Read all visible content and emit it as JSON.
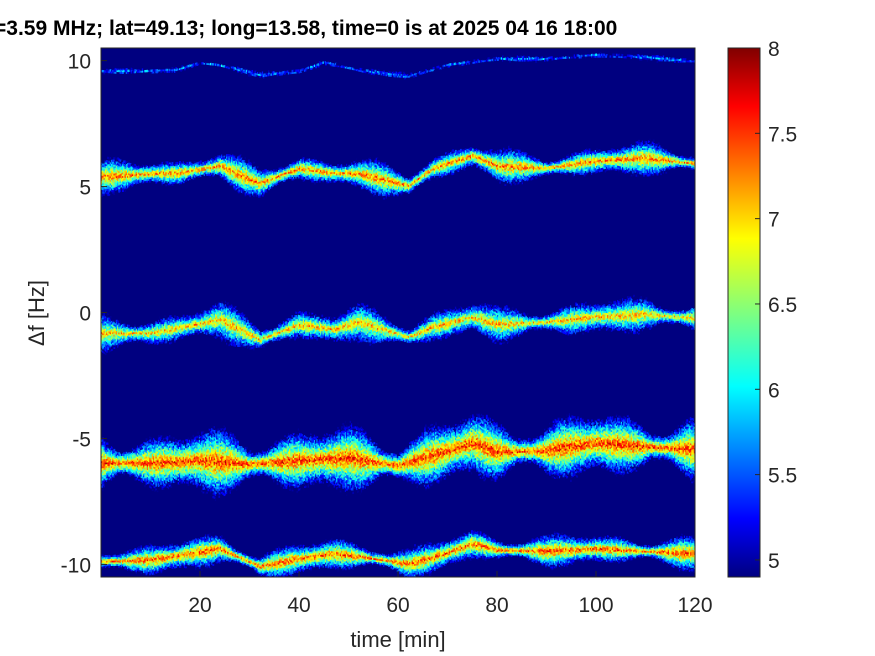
{
  "title": "=3.59 MHz;  lat=49.13; long=13.58, time=0 is at 2025 04 16 18:00",
  "chart_data": {
    "type": "heatmap",
    "title": "=3.59 MHz;  lat=49.13; long=13.58, time=0 is at 2025 04 16 18:00",
    "xlabel": "time [min]",
    "ylabel": "Δf [Hz]",
    "xlim": [
      0,
      120
    ],
    "ylim": [
      -10.5,
      10.5
    ],
    "xticks": [
      20,
      40,
      60,
      80,
      100,
      120
    ],
    "yticks": [
      10,
      5,
      0,
      -5,
      -10
    ],
    "colorbar": {
      "colormap": "jet",
      "clim": [
        4.9,
        8
      ],
      "ticks": [
        8,
        7.5,
        7,
        6.5,
        6,
        5.5,
        5
      ]
    },
    "background_color": "#000080",
    "bands": [
      {
        "center_offset": 10,
        "spread": 0.08,
        "peak": 6.2,
        "trace": [
          [
            0,
            9.55
          ],
          [
            10,
            9.55
          ],
          [
            15,
            9.6
          ],
          [
            20,
            9.9
          ],
          [
            25,
            9.75
          ],
          [
            32,
            9.4
          ],
          [
            40,
            9.55
          ],
          [
            45,
            9.9
          ],
          [
            52,
            9.6
          ],
          [
            62,
            9.35
          ],
          [
            70,
            9.8
          ],
          [
            80,
            10.05
          ],
          [
            90,
            10.05
          ],
          [
            100,
            10.2
          ],
          [
            110,
            10.1
          ],
          [
            120,
            9.95
          ]
        ]
      },
      {
        "center_offset": 5,
        "spread": 0.45,
        "peak": 7.7,
        "trace": [
          [
            0,
            5.35
          ],
          [
            10,
            5.5
          ],
          [
            15,
            5.5
          ],
          [
            24,
            5.8
          ],
          [
            32,
            5.1
          ],
          [
            40,
            5.7
          ],
          [
            47,
            5.5
          ],
          [
            52,
            5.5
          ],
          [
            62,
            5.0
          ],
          [
            67,
            5.7
          ],
          [
            75,
            6.2
          ],
          [
            80,
            5.8
          ],
          [
            90,
            5.7
          ],
          [
            100,
            6.0
          ],
          [
            110,
            6.1
          ],
          [
            120,
            5.9
          ]
        ]
      },
      {
        "center_offset": 0,
        "spread": 0.5,
        "peak": 7.5,
        "trace": [
          [
            0,
            -0.85
          ],
          [
            10,
            -0.85
          ],
          [
            24,
            -0.3
          ],
          [
            32,
            -1.1
          ],
          [
            40,
            -0.5
          ],
          [
            47,
            -0.7
          ],
          [
            52,
            -0.4
          ],
          [
            62,
            -1.0
          ],
          [
            67,
            -0.6
          ],
          [
            75,
            -0.2
          ],
          [
            80,
            -0.5
          ],
          [
            90,
            -0.4
          ],
          [
            100,
            -0.2
          ],
          [
            110,
            -0.1
          ],
          [
            120,
            -0.25
          ]
        ]
      },
      {
        "center_offset": -5,
        "spread": 0.9,
        "peak": 7.9,
        "trace": [
          [
            0,
            -6.0
          ],
          [
            10,
            -6.0
          ],
          [
            20,
            -5.9
          ],
          [
            30,
            -6.05
          ],
          [
            40,
            -5.9
          ],
          [
            50,
            -5.8
          ],
          [
            60,
            -6.1
          ],
          [
            67,
            -5.7
          ],
          [
            75,
            -5.2
          ],
          [
            80,
            -5.55
          ],
          [
            90,
            -5.5
          ],
          [
            100,
            -5.2
          ],
          [
            110,
            -5.35
          ],
          [
            120,
            -5.45
          ]
        ]
      },
      {
        "center_offset": -10,
        "spread": 0.45,
        "peak": 7.8,
        "trace": [
          [
            0,
            -9.9
          ],
          [
            10,
            -9.85
          ],
          [
            24,
            -9.4
          ],
          [
            32,
            -10.1
          ],
          [
            40,
            -9.8
          ],
          [
            47,
            -9.6
          ],
          [
            52,
            -9.7
          ],
          [
            62,
            -10.0
          ],
          [
            67,
            -9.75
          ],
          [
            75,
            -9.2
          ],
          [
            80,
            -9.45
          ],
          [
            90,
            -9.5
          ],
          [
            100,
            -9.4
          ],
          [
            110,
            -9.5
          ],
          [
            120,
            -9.6
          ]
        ]
      }
    ],
    "grid": false,
    "legend": "none"
  }
}
